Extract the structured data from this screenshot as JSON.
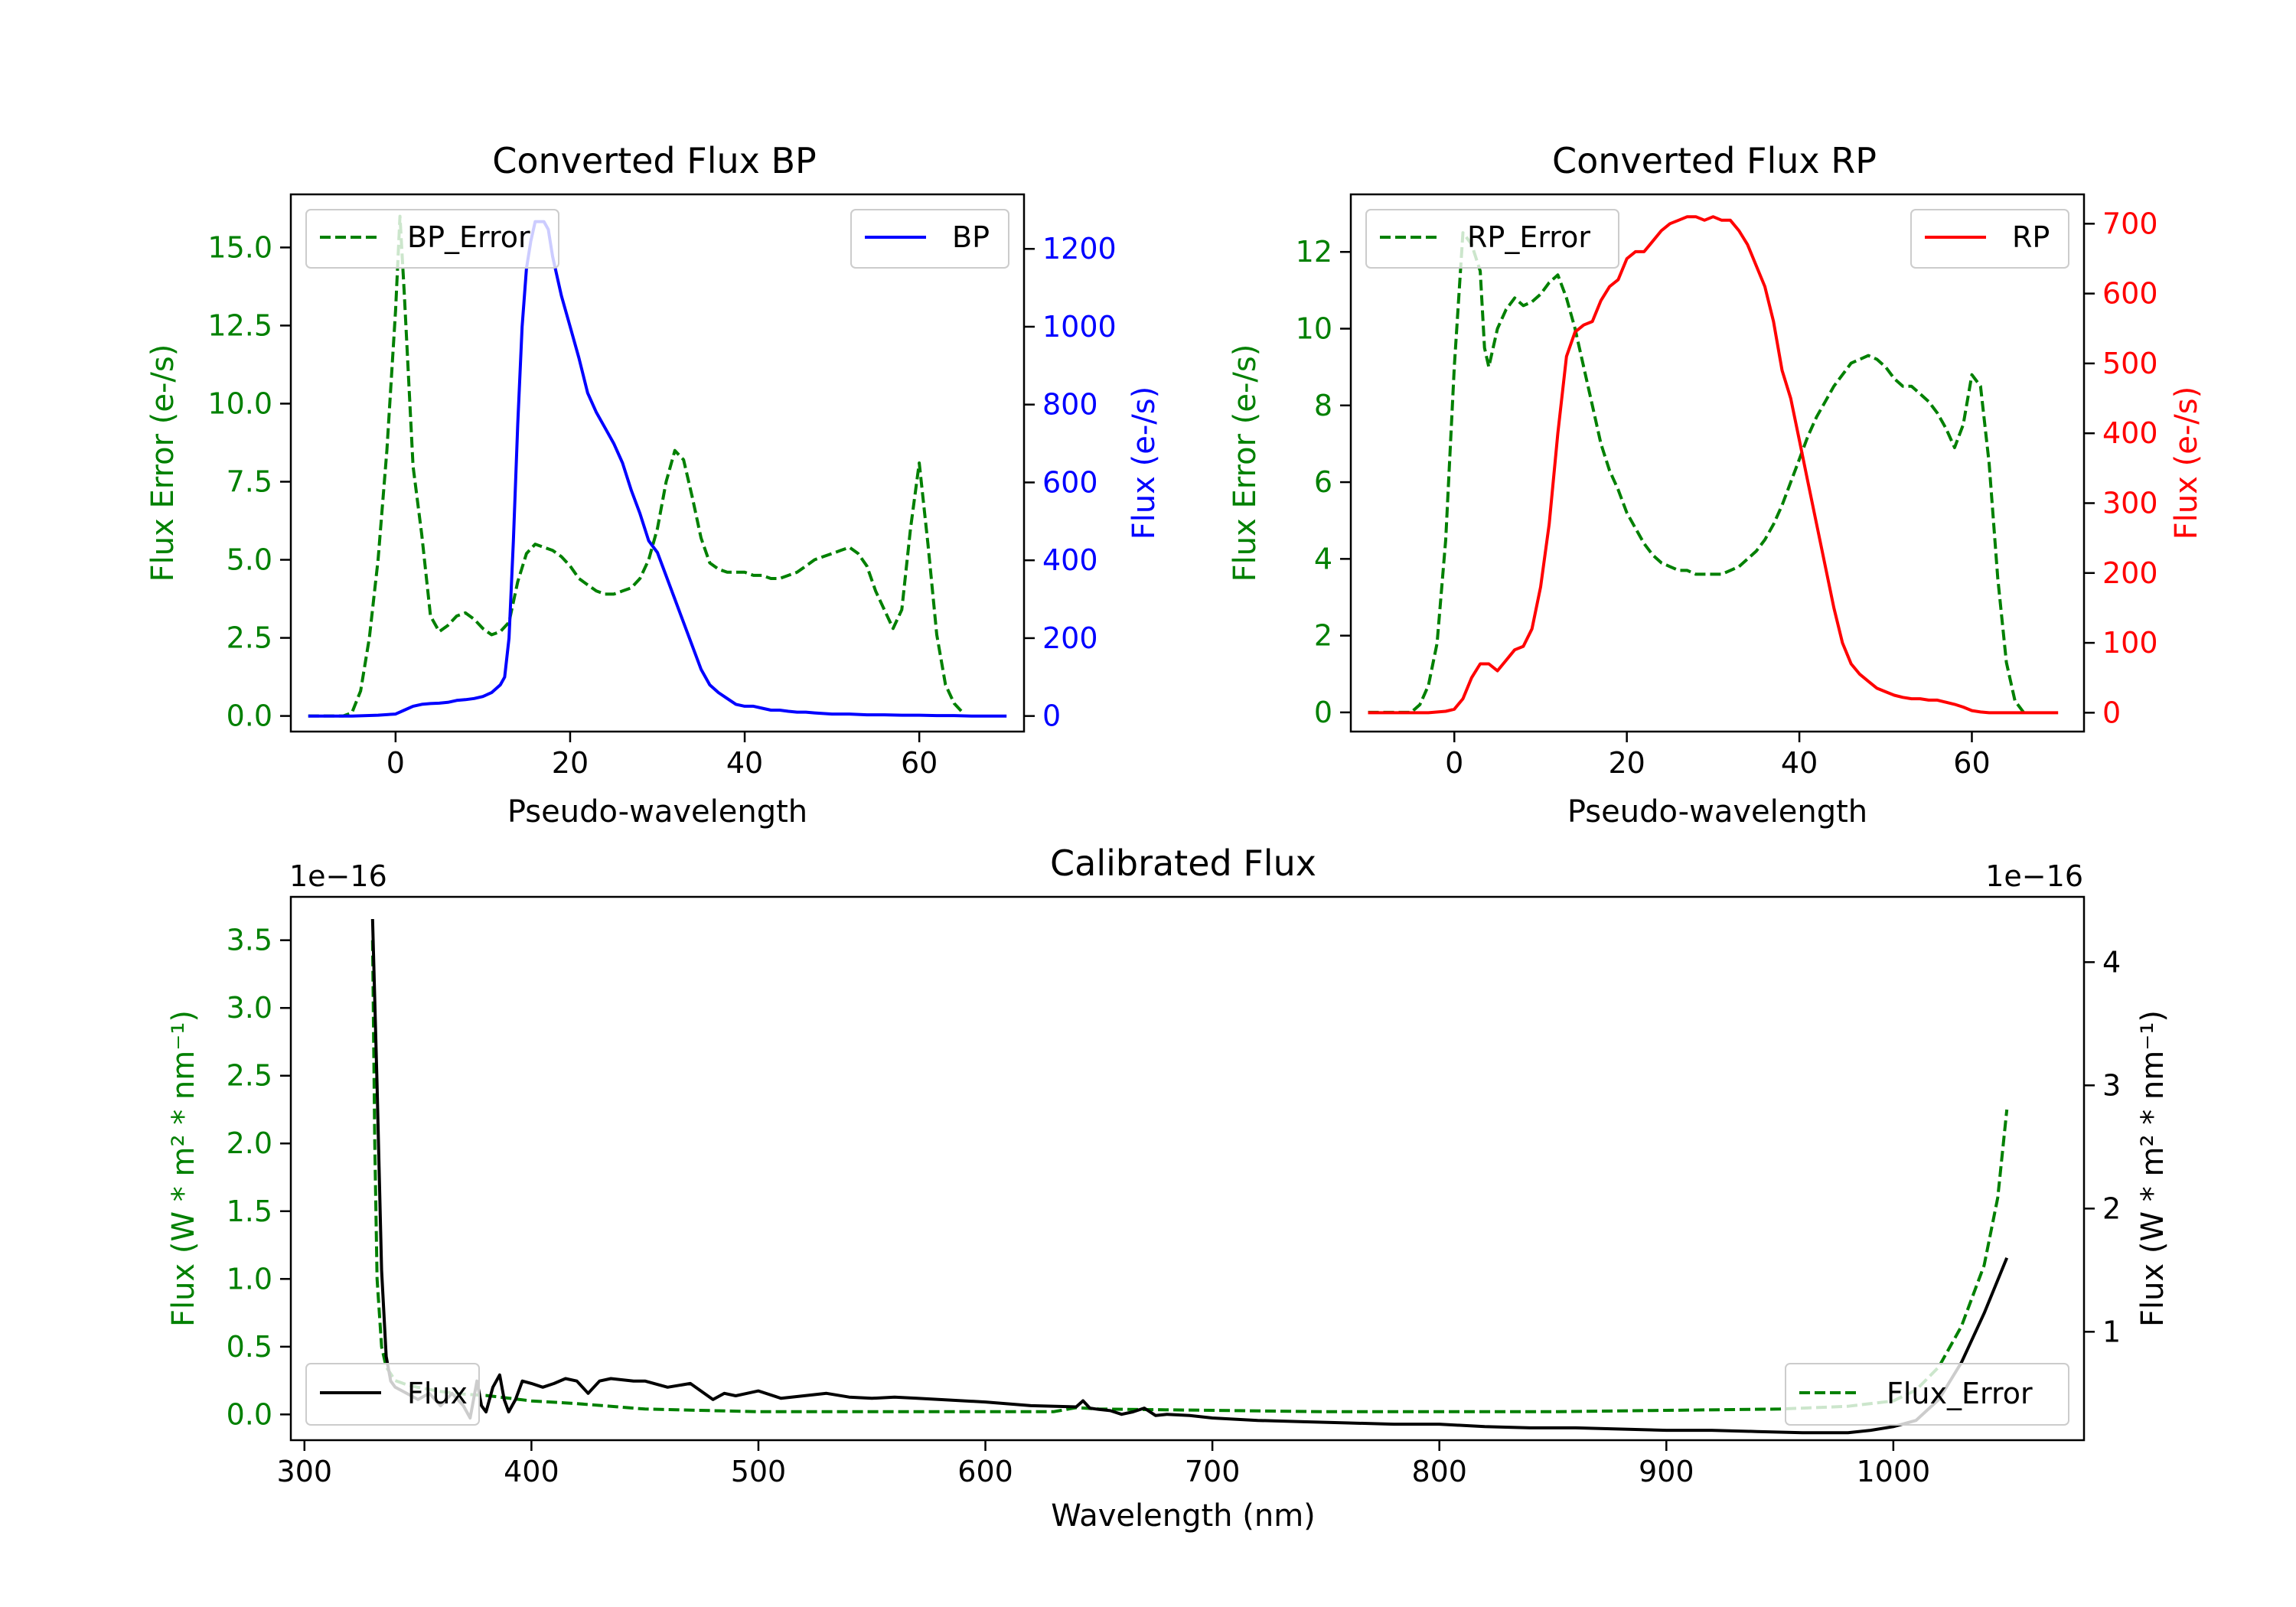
{
  "chart_data": [
    {
      "id": "bp",
      "type": "line",
      "title": "Converted Flux BP",
      "xlabel": "Pseudo-wavelength",
      "ylabel_left": "Flux Error (e-/s)",
      "ylabel_right": "Flux (e-/s)",
      "xlim": [
        -12,
        72
      ],
      "ylim_left": [
        -0.5,
        16.7
      ],
      "ylim_right": [
        -40,
        1340
      ],
      "xticks": [
        0,
        20,
        40,
        60
      ],
      "xtick_labels": [
        "0",
        "20",
        "40",
        "60"
      ],
      "yticks_left": [
        0,
        2.5,
        5,
        7.5,
        10,
        12.5,
        15
      ],
      "ytick_labels_left": [
        "0.0",
        "2.5",
        "5.0",
        "7.5",
        "10.0",
        "12.5",
        "15.0"
      ],
      "yticks_right": [
        0,
        200,
        400,
        600,
        800,
        1000,
        1200
      ],
      "ytick_labels_right": [
        "0",
        "200",
        "400",
        "600",
        "800",
        "1000",
        "1200"
      ],
      "left_color": "#008000",
      "right_color": "#0000ff",
      "legend_left": "top-left",
      "legend_right": "top-right",
      "series": [
        {
          "name": "BP_Error",
          "axis": "left",
          "style": "dashed",
          "color": "#008000",
          "x": [
            -10,
            -6,
            -5,
            -4,
            -3,
            -2,
            -1,
            0,
            0.5,
            1,
            2,
            3,
            4,
            5,
            6,
            7,
            8,
            9,
            10,
            11,
            12,
            13,
            14,
            15,
            16,
            17,
            18,
            19,
            20,
            21,
            22,
            23,
            24,
            25,
            26,
            27,
            28,
            29,
            30,
            31,
            32,
            33,
            34,
            35,
            36,
            37,
            38,
            39,
            40,
            41,
            42,
            43,
            44,
            45,
            46,
            47,
            48,
            49,
            50,
            51,
            52,
            53,
            54,
            55,
            56,
            57,
            58,
            59,
            60,
            61,
            62,
            63,
            64,
            65
          ],
          "y": [
            0,
            0,
            0.1,
            0.8,
            2.5,
            5,
            8.5,
            13,
            16,
            13.5,
            8,
            5.8,
            3.2,
            2.7,
            2.9,
            3.2,
            3.3,
            3.1,
            2.8,
            2.6,
            2.7,
            3,
            4.3,
            5.2,
            5.5,
            5.4,
            5.3,
            5.1,
            4.8,
            4.4,
            4.2,
            4.0,
            3.9,
            3.9,
            4.0,
            4.1,
            4.4,
            5.0,
            6.0,
            7.5,
            8.5,
            8.2,
            7.0,
            5.7,
            4.9,
            4.7,
            4.6,
            4.6,
            4.6,
            4.5,
            4.5,
            4.4,
            4.4,
            4.5,
            4.6,
            4.8,
            5.0,
            5.1,
            5.2,
            5.3,
            5.4,
            5.2,
            4.8,
            4.0,
            3.4,
            2.8,
            3.4,
            6.0,
            8.1,
            5.5,
            2.6,
            1.0,
            0.4,
            0.1
          ]
        },
        {
          "name": "BP",
          "axis": "right",
          "style": "solid",
          "color": "#0000ff",
          "x": [
            -10,
            -5,
            -2,
            0,
            1,
            2,
            3,
            4,
            5,
            6,
            7,
            8,
            9,
            10,
            11,
            12,
            12.5,
            13,
            13.5,
            14,
            14.5,
            15,
            15.5,
            16,
            17,
            17.5,
            18,
            19,
            20,
            21,
            22,
            23,
            24,
            25,
            26,
            27,
            28,
            29,
            30,
            31,
            32,
            33,
            34,
            35,
            36,
            37,
            38,
            39,
            40,
            41,
            42,
            43,
            44,
            45,
            46,
            47,
            48,
            50,
            52,
            54,
            56,
            58,
            60,
            62,
            64,
            66,
            68,
            70
          ],
          "y": [
            0,
            0,
            2,
            5,
            15,
            25,
            30,
            32,
            33,
            35,
            40,
            42,
            45,
            50,
            60,
            80,
            100,
            200,
            450,
            750,
            1000,
            1150,
            1220,
            1270,
            1270,
            1250,
            1180,
            1080,
            1000,
            920,
            830,
            780,
            740,
            700,
            650,
            580,
            520,
            450,
            420,
            360,
            300,
            240,
            180,
            120,
            80,
            60,
            45,
            30,
            25,
            25,
            20,
            15,
            15,
            12,
            10,
            10,
            8,
            5,
            5,
            3,
            3,
            2,
            2,
            1,
            1,
            0,
            0,
            0
          ]
        }
      ]
    },
    {
      "id": "rp",
      "type": "line",
      "title": "Converted Flux RP",
      "xlabel": "Pseudo-wavelength",
      "ylabel_left": "Flux Error (e-/s)",
      "ylabel_right": "Flux (e-/s)",
      "xlim": [
        -12,
        73
      ],
      "ylim_left": [
        -0.5,
        13.5
      ],
      "ylim_right": [
        -27,
        742
      ],
      "xticks": [
        0,
        20,
        40,
        60
      ],
      "xtick_labels": [
        "0",
        "20",
        "40",
        "60"
      ],
      "yticks_left": [
        0,
        2,
        4,
        6,
        8,
        10,
        12
      ],
      "ytick_labels_left": [
        "0",
        "2",
        "4",
        "6",
        "8",
        "10",
        "12"
      ],
      "yticks_right": [
        0,
        100,
        200,
        300,
        400,
        500,
        600,
        700
      ],
      "ytick_labels_right": [
        "0",
        "100",
        "200",
        "300",
        "400",
        "500",
        "600",
        "700"
      ],
      "left_color": "#008000",
      "right_color": "#ff0000",
      "legend_left": "top-left",
      "legend_right": "top-right",
      "series": [
        {
          "name": "RP_Error",
          "axis": "left",
          "style": "dashed",
          "color": "#008000",
          "x": [
            -10,
            -5,
            -4,
            -3,
            -2,
            -1,
            0,
            1,
            2,
            3,
            3.5,
            4,
            5,
            6,
            7,
            8,
            9,
            10,
            11,
            12,
            13,
            14,
            15,
            16,
            17,
            18,
            19,
            20,
            21,
            22,
            23,
            24,
            25,
            26,
            27,
            28,
            29,
            30,
            31,
            32,
            33,
            34,
            35,
            36,
            37,
            38,
            39,
            40,
            41,
            42,
            43,
            44,
            45,
            46,
            47,
            48,
            49,
            50,
            51,
            52,
            53,
            54,
            55,
            56,
            57,
            58,
            59,
            60,
            61,
            62,
            63,
            64,
            65,
            66
          ],
          "y": [
            0,
            0,
            0.2,
            0.7,
            1.8,
            4.5,
            9,
            12.5,
            12.2,
            11.5,
            9.5,
            9,
            10,
            10.5,
            10.8,
            10.6,
            10.7,
            10.9,
            11.2,
            11.4,
            10.8,
            10.0,
            9.0,
            8.0,
            7.0,
            6.3,
            5.8,
            5.2,
            4.8,
            4.4,
            4.1,
            3.9,
            3.8,
            3.7,
            3.7,
            3.6,
            3.6,
            3.6,
            3.6,
            3.7,
            3.8,
            4.0,
            4.2,
            4.5,
            4.9,
            5.4,
            6.0,
            6.6,
            7.2,
            7.7,
            8.1,
            8.5,
            8.8,
            9.1,
            9.2,
            9.3,
            9.2,
            9.0,
            8.7,
            8.5,
            8.5,
            8.3,
            8.1,
            7.8,
            7.4,
            6.9,
            7.5,
            8.8,
            8.5,
            6.5,
            3.5,
            1.3,
            0.3,
            0
          ]
        },
        {
          "name": "RP",
          "axis": "right",
          "style": "solid",
          "color": "#ff0000",
          "x": [
            -10,
            -3,
            -1,
            0,
            1,
            2,
            3,
            4,
            5,
            6,
            7,
            8,
            9,
            10,
            11,
            12,
            13,
            14,
            15,
            16,
            17,
            18,
            19,
            20,
            21,
            22,
            23,
            24,
            25,
            26,
            27,
            28,
            29,
            30,
            31,
            32,
            33,
            34,
            35,
            36,
            37,
            38,
            39,
            40,
            41,
            42,
            43,
            44,
            45,
            46,
            47,
            48,
            49,
            50,
            51,
            52,
            53,
            54,
            55,
            56,
            57,
            58,
            59,
            60,
            61,
            62,
            63,
            64,
            66,
            70
          ],
          "y": [
            0,
            0,
            2,
            5,
            20,
            50,
            70,
            70,
            60,
            75,
            90,
            95,
            120,
            180,
            270,
            400,
            510,
            545,
            555,
            560,
            590,
            610,
            620,
            650,
            660,
            660,
            675,
            690,
            700,
            705,
            710,
            710,
            705,
            710,
            705,
            705,
            690,
            670,
            640,
            610,
            560,
            490,
            450,
            390,
            330,
            270,
            210,
            150,
            100,
            70,
            55,
            45,
            35,
            30,
            25,
            22,
            20,
            20,
            18,
            18,
            15,
            12,
            8,
            3,
            1,
            0,
            0,
            0,
            0,
            0
          ]
        }
      ]
    },
    {
      "id": "cal",
      "type": "line",
      "title": "Calibrated Flux",
      "xlabel": "Wavelength (nm)",
      "ylabel_left": "Flux (W * m² * nm⁻¹)",
      "ylabel_right": "Flux (W * m² * nm⁻¹)",
      "offset_left": "1e−16",
      "offset_right": "1e−16",
      "xlim": [
        294,
        1084
      ],
      "ylim_left": [
        -0.19,
        3.82
      ],
      "ylim_right": [
        0.12,
        4.53
      ],
      "xticks": [
        300,
        400,
        500,
        600,
        700,
        800,
        900,
        1000
      ],
      "xtick_labels": [
        "300",
        "400",
        "500",
        "600",
        "700",
        "800",
        "900",
        "1000"
      ],
      "yticks_left": [
        0,
        0.5,
        1,
        1.5,
        2,
        2.5,
        3,
        3.5
      ],
      "ytick_labels_left": [
        "0.0",
        "0.5",
        "1.0",
        "1.5",
        "2.0",
        "2.5",
        "3.0",
        "3.5"
      ],
      "yticks_right": [
        1,
        2,
        3,
        4
      ],
      "ytick_labels_right": [
        "1",
        "2",
        "3",
        "4"
      ],
      "left_color": "#008000",
      "right_color": "#000000",
      "legend_left": "lower-left",
      "legend_right": "lower-right",
      "series": [
        {
          "name": "Flux_Error",
          "axis": "left",
          "style": "dashed",
          "color": "#008000",
          "x": [
            330,
            331,
            332,
            334,
            336,
            340,
            345,
            350,
            360,
            370,
            380,
            390,
            400,
            420,
            450,
            500,
            550,
            600,
            630,
            640,
            650,
            700,
            750,
            800,
            850,
            900,
            950,
            980,
            1000,
            1010,
            1020,
            1030,
            1040,
            1046,
            1050
          ],
          "y": [
            3.5,
            2.0,
            1.0,
            0.5,
            0.35,
            0.25,
            0.22,
            0.2,
            0.17,
            0.15,
            0.14,
            0.12,
            0.1,
            0.08,
            0.04,
            0.02,
            0.02,
            0.02,
            0.02,
            0.05,
            0.04,
            0.03,
            0.02,
            0.02,
            0.02,
            0.03,
            0.04,
            0.06,
            0.1,
            0.18,
            0.35,
            0.65,
            1.1,
            1.6,
            2.25
          ]
        },
        {
          "name": "Flux",
          "axis": "right",
          "style": "solid",
          "color": "#000000",
          "x": [
            330,
            332,
            334,
            336,
            338,
            340,
            345,
            350,
            355,
            360,
            365,
            370,
            373,
            376,
            378,
            380,
            383,
            386,
            388,
            390,
            393,
            396,
            400,
            405,
            410,
            415,
            420,
            425,
            430,
            435,
            440,
            445,
            450,
            460,
            470,
            480,
            485,
            490,
            495,
            500,
            510,
            520,
            530,
            540,
            550,
            560,
            570,
            580,
            600,
            620,
            640,
            643,
            646,
            650,
            655,
            660,
            665,
            670,
            675,
            680,
            690,
            700,
            710,
            720,
            740,
            760,
            780,
            800,
            820,
            840,
            860,
            880,
            900,
            920,
            940,
            960,
            980,
            990,
            1000,
            1010,
            1020,
            1030,
            1040,
            1050
          ],
          "y": [
            4.35,
            3.0,
            1.5,
            0.8,
            0.6,
            0.55,
            0.5,
            0.45,
            0.5,
            0.4,
            0.5,
            0.4,
            0.3,
            0.6,
            0.4,
            0.35,
            0.55,
            0.65,
            0.45,
            0.35,
            0.45,
            0.6,
            0.58,
            0.55,
            0.58,
            0.62,
            0.6,
            0.5,
            0.6,
            0.62,
            0.61,
            0.6,
            0.6,
            0.55,
            0.58,
            0.45,
            0.5,
            0.48,
            0.5,
            0.52,
            0.46,
            0.48,
            0.5,
            0.47,
            0.46,
            0.47,
            0.46,
            0.45,
            0.43,
            0.4,
            0.39,
            0.44,
            0.38,
            0.37,
            0.36,
            0.33,
            0.35,
            0.38,
            0.32,
            0.33,
            0.32,
            0.3,
            0.29,
            0.28,
            0.27,
            0.26,
            0.25,
            0.25,
            0.23,
            0.22,
            0.22,
            0.21,
            0.2,
            0.2,
            0.19,
            0.18,
            0.18,
            0.2,
            0.23,
            0.28,
            0.45,
            0.75,
            1.15,
            1.6
          ]
        }
      ]
    }
  ]
}
